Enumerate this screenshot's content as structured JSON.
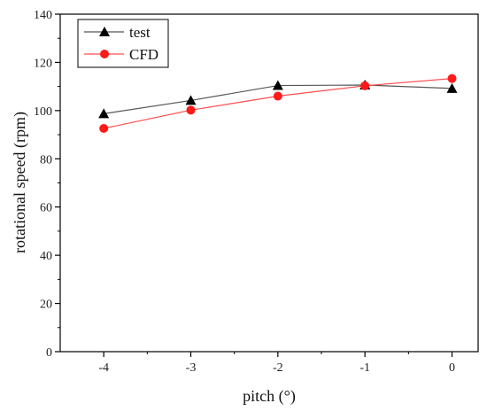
{
  "chart_data": {
    "type": "line",
    "title": "",
    "xlabel": "pitch (°)",
    "ylabel": "rotational speed (rpm)",
    "x": [
      -4,
      -3,
      -2,
      -1,
      0
    ],
    "x_ticks": [
      "-4",
      "-3",
      "-2",
      "-1",
      "0"
    ],
    "xlim": [
      -4.5,
      0.3
    ],
    "ylim": [
      0,
      140
    ],
    "y_ticks": [
      "0",
      "20",
      "40",
      "60",
      "80",
      "100",
      "120",
      "140"
    ],
    "grid": false,
    "legend_position": "top-left",
    "series": [
      {
        "name": "test",
        "marker": "triangle",
        "color": "#000000",
        "line_color": "#555555",
        "values": [
          98.7,
          104.2,
          110.4,
          110.6,
          109.2
        ]
      },
      {
        "name": "CFD",
        "marker": "circle",
        "color": "#ff1a1a",
        "line_color": "#ff4d4d",
        "values": [
          92.6,
          100.2,
          106.0,
          110.3,
          113.3
        ]
      }
    ]
  }
}
